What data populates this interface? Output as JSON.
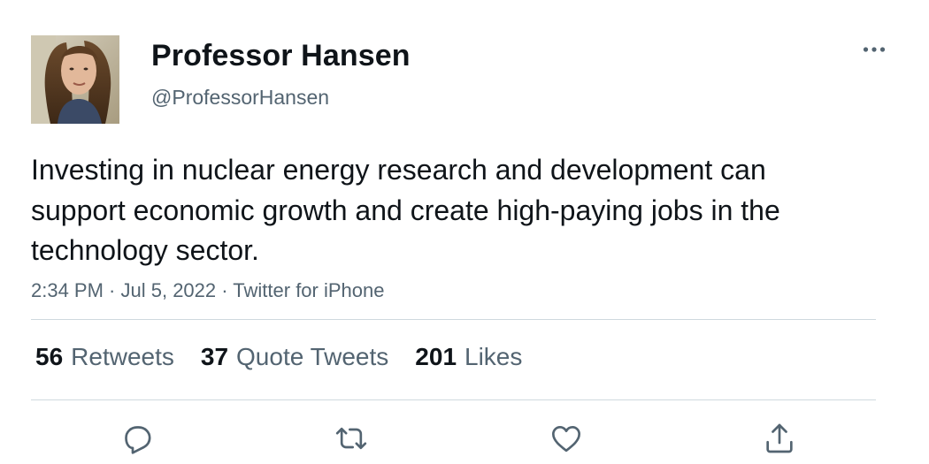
{
  "author": {
    "display_name": "Professor Hansen",
    "handle": "@ProfessorHansen",
    "avatar_icon": "profile-photo"
  },
  "tweet": {
    "text": "Investing in nuclear energy research and development can support economic growth and create high-paying jobs in the technology sector.",
    "time": "2:34 PM",
    "separator_1": " · ",
    "date": "Jul 5, 2022",
    "separator_2": " · ",
    "source": "Twitter for iPhone"
  },
  "stats": {
    "retweets": {
      "count": "56",
      "label": "Retweets"
    },
    "quote_tweets": {
      "count": "37",
      "label": "Quote Tweets"
    },
    "likes": {
      "count": "201",
      "label": "Likes"
    }
  },
  "actions": {
    "reply_icon": "reply-icon",
    "retweet_icon": "retweet-icon",
    "like_icon": "heart-icon",
    "share_icon": "share-icon",
    "more_icon": "more-icon"
  },
  "colors": {
    "text_primary": "#0f1419",
    "text_secondary": "#536471",
    "divider": "#cfd9de"
  }
}
